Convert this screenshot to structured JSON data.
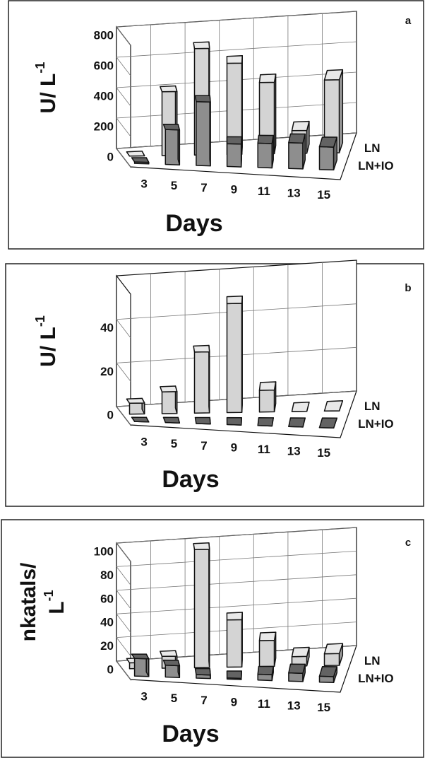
{
  "chart_data": [
    {
      "type": "bar",
      "panel_label": "a",
      "y_label": [
        "U/ L"
      ],
      "y_label_sup": "-1",
      "x_label": "Days",
      "categories": [
        "3",
        "5",
        "7",
        "9",
        "11",
        "13",
        "15"
      ],
      "series": [
        {
          "name": "LN",
          "color": "#d4d4d4",
          "values": [
            0,
            420,
            700,
            600,
            470,
            150,
            480
          ]
        },
        {
          "name": "LN+IO",
          "color": "#8e8e8e",
          "values": [
            10,
            230,
            420,
            150,
            160,
            170,
            150
          ]
        }
      ],
      "ylim": [
        0,
        800
      ],
      "yticks": [
        0,
        200,
        400,
        600,
        800
      ],
      "grid": true
    },
    {
      "type": "bar",
      "panel_label": "b",
      "y_label": [
        "U/ L"
      ],
      "y_label_sup": "-1",
      "x_label": "Days",
      "categories": [
        "3",
        "5",
        "7",
        "9",
        "11",
        "13",
        "15"
      ],
      "series": [
        {
          "name": "LN",
          "color": "#d4d4d4",
          "values": [
            5,
            10,
            28,
            50,
            10,
            0,
            0
          ]
        },
        {
          "name": "LN+IO",
          "color": "#8e8e8e",
          "values": [
            0,
            0,
            0,
            0,
            0,
            0,
            0
          ]
        }
      ],
      "ylim": [
        0,
        60
      ],
      "yticks": [
        0,
        20,
        40
      ],
      "grid": true
    },
    {
      "type": "bar",
      "panel_label": "c",
      "y_label": [
        "nkatals/",
        "L"
      ],
      "y_label_sup": "-1",
      "x_label": "Days",
      "categories": [
        "3",
        "5",
        "7",
        "9",
        "11",
        "13",
        "15"
      ],
      "series": [
        {
          "name": "LN",
          "color": "#d4d4d4",
          "values": [
            5,
            10,
            100,
            40,
            22,
            8,
            10
          ]
        },
        {
          "name": "LN+IO",
          "color": "#8e8e8e",
          "values": [
            15,
            10,
            3,
            1,
            5,
            7,
            5
          ]
        }
      ],
      "ylim": [
        0,
        100
      ],
      "yticks": [
        0,
        20,
        40,
        60,
        80,
        100
      ],
      "grid": true
    }
  ]
}
